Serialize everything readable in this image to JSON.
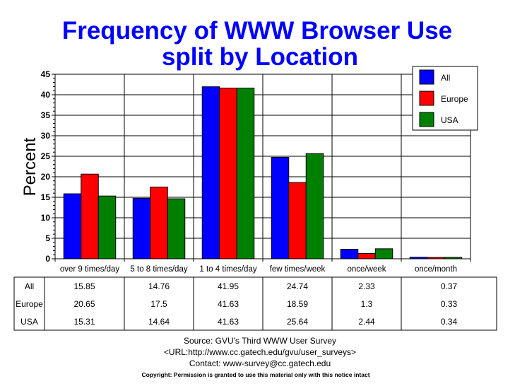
{
  "chart_data": {
    "type": "bar",
    "title": [
      "Frequency of WWW Browser Use",
      "split by Location"
    ],
    "ylabel": "Percent",
    "xlabel": "",
    "ylim": [
      0,
      45
    ],
    "yticks": [
      0,
      5,
      10,
      15,
      20,
      25,
      30,
      35,
      40,
      45
    ],
    "grid": true,
    "legend_position": "top-right",
    "categories": [
      "over 9 times/day",
      "5 to 8 times/day",
      "1 to 4 times/day",
      "few times/week",
      "once/week",
      "once/month"
    ],
    "series": [
      {
        "name": "All",
        "color": "#0000ff",
        "values": [
          15.85,
          14.76,
          41.95,
          24.74,
          2.33,
          0.37
        ]
      },
      {
        "name": "Europe",
        "color": "#ff0000",
        "values": [
          20.65,
          17.5,
          41.63,
          18.59,
          1.3,
          0.33
        ]
      },
      {
        "name": "USA",
        "color": "#008000",
        "values": [
          15.31,
          14.64,
          41.63,
          25.64,
          2.44,
          0.34
        ]
      }
    ],
    "table": true
  },
  "footer": {
    "source": "Source: GVU's Third WWW User Survey",
    "url": "<URL:http://www.cc.gatech.edu/gvu/user_surveys>",
    "contact": "Contact: www-survey@cc.gatech.edu",
    "copyright": "Copyright: Permission is granted to use this material only with this notice intact"
  },
  "title_color": "#0000ff"
}
